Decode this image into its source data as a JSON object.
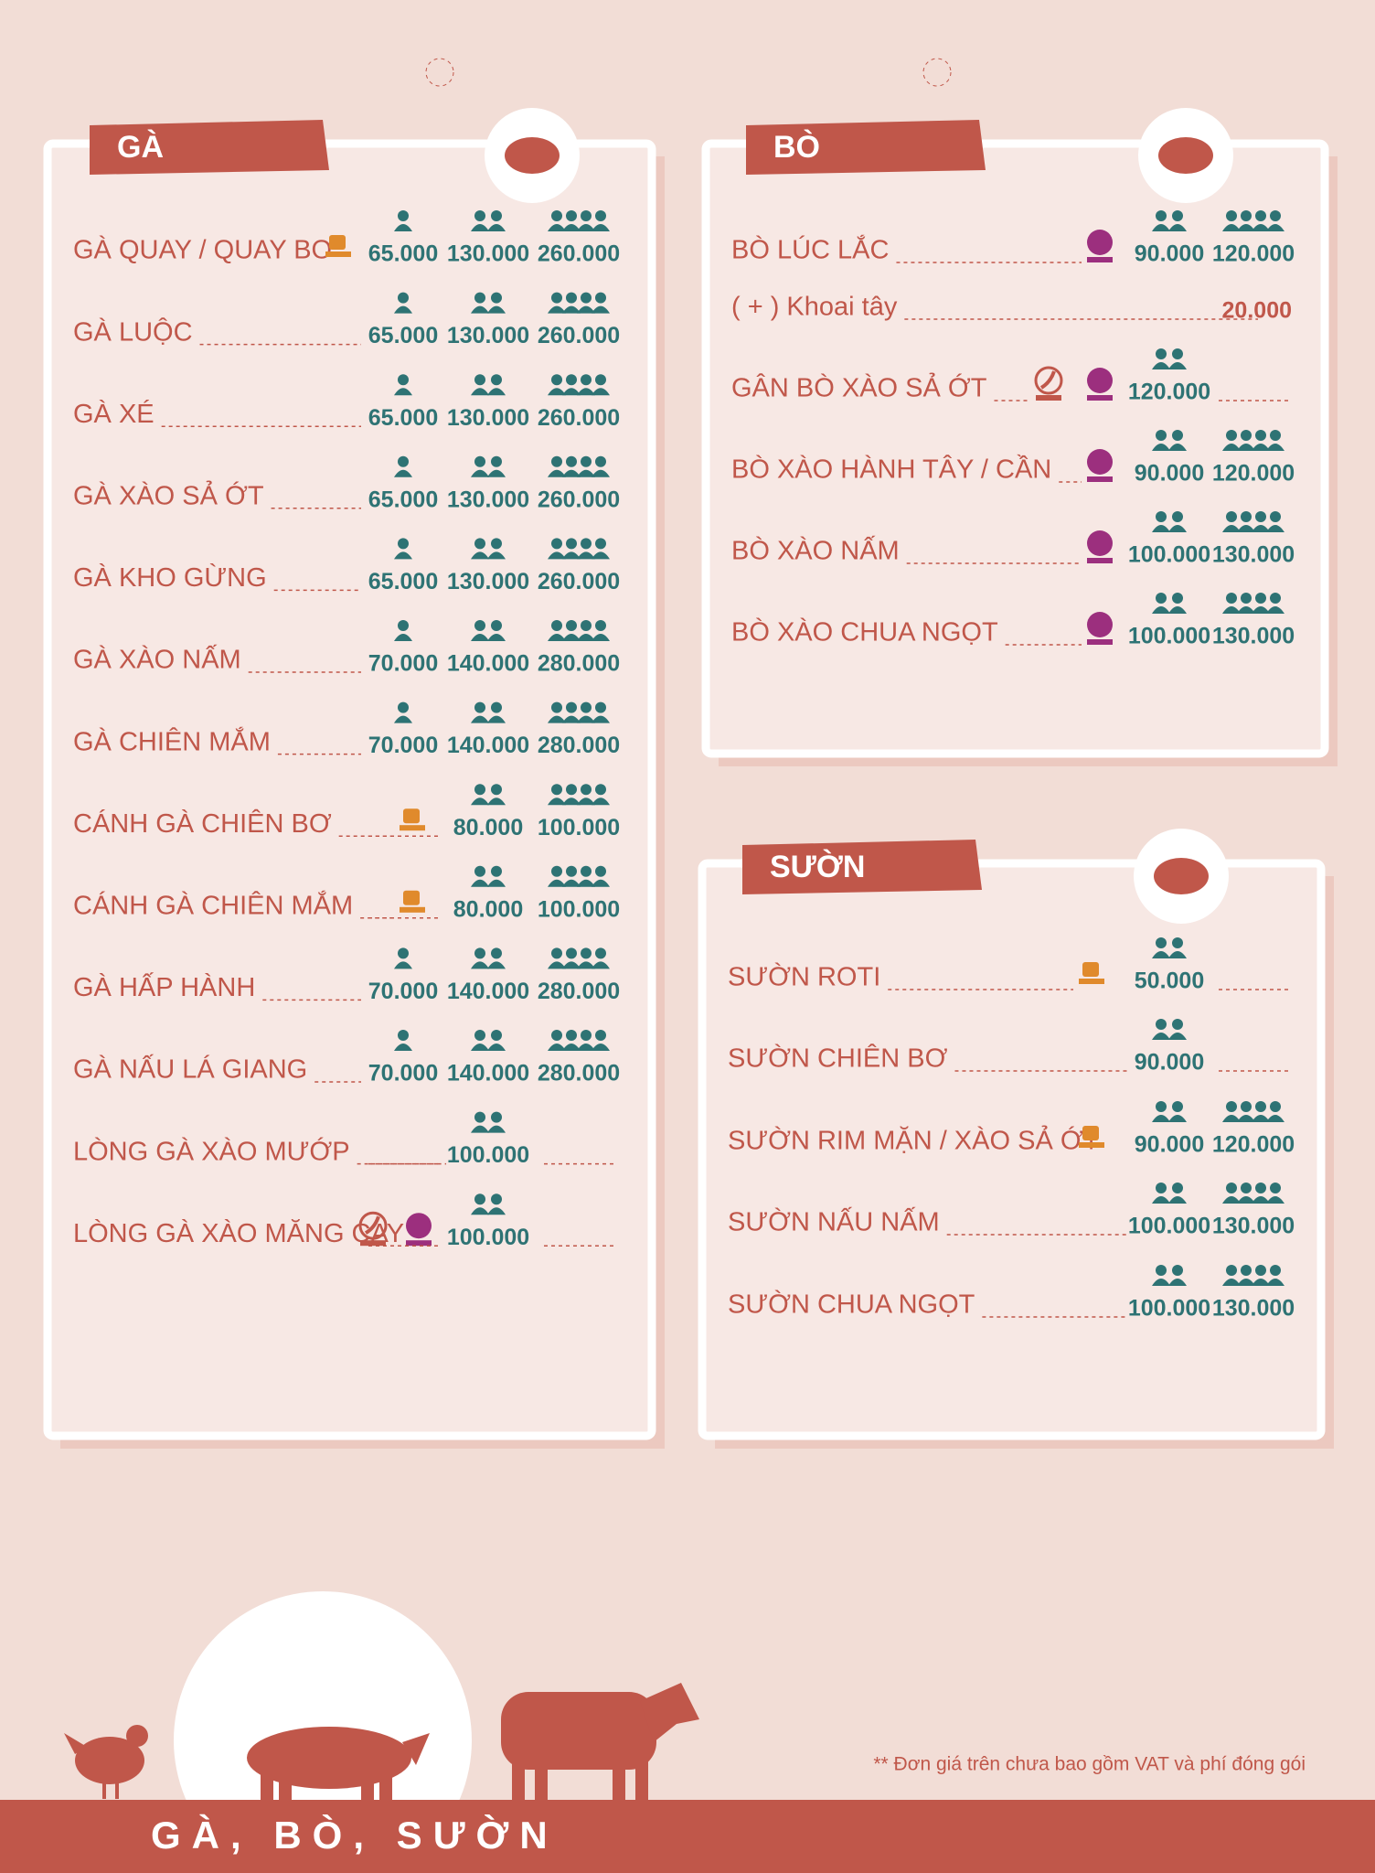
{
  "sections": [
    {
      "title": "GÀ",
      "items": [
        {
          "name": "GÀ QUAY / QUAY BƠ",
          "prices": [
            "65.000",
            "130.000",
            "260.000"
          ]
        },
        {
          "name": "GÀ LUỘC",
          "prices": [
            "65.000",
            "130.000",
            "260.000"
          ]
        },
        {
          "name": "GÀ XÉ",
          "prices": [
            "65.000",
            "130.000",
            "260.000"
          ]
        },
        {
          "name": "GÀ XÀO SẢ ỚT",
          "prices": [
            "65.000",
            "130.000",
            "260.000"
          ]
        },
        {
          "name": "GÀ KHO GỪNG",
          "prices": [
            "65.000",
            "130.000",
            "260.000"
          ]
        },
        {
          "name": "GÀ XÀO NẤM",
          "prices": [
            "70.000",
            "140.000",
            "280.000"
          ]
        },
        {
          "name": "GÀ CHIÊN MẮM",
          "prices": [
            "70.000",
            "140.000",
            "280.000"
          ]
        },
        {
          "name": "CÁNH GÀ CHIÊN BƠ",
          "prices": [
            null,
            "80.000",
            "100.000"
          ]
        },
        {
          "name": "CÁNH GÀ CHIÊN MẮM",
          "prices": [
            null,
            "80.000",
            "100.000"
          ]
        },
        {
          "name": "GÀ HẤP HÀNH",
          "prices": [
            "70.000",
            "140.000",
            "280.000"
          ]
        },
        {
          "name": "GÀ NẤU LÁ GIANG",
          "prices": [
            "70.000",
            "140.000",
            "280.000"
          ]
        },
        {
          "name": "LÒNG GÀ XÀO MƯỚP",
          "prices": [
            null,
            "100.000",
            null
          ]
        },
        {
          "name": "LÒNG GÀ XÀO MĂNG CAY",
          "prices": [
            null,
            "100.000",
            null
          ]
        }
      ]
    },
    {
      "title": "BÒ",
      "items": [
        {
          "name": "BÒ LÚC LẮC",
          "prices": [
            "90.000",
            "120.000"
          ]
        },
        {
          "name": "( + ) Khoai tây",
          "prices": [
            null,
            "20.000"
          ]
        },
        {
          "name": "GÂN BÒ XÀO SẢ ỚT",
          "prices": [
            "120.000",
            null
          ]
        },
        {
          "name": "BÒ XÀO HÀNH TÂY / CẦN",
          "prices": [
            "90.000",
            "120.000"
          ]
        },
        {
          "name": "BÒ XÀO NẤM",
          "prices": [
            "100.000",
            "130.000"
          ]
        },
        {
          "name": "BÒ XÀO CHUA NGỌT",
          "prices": [
            "100.000",
            "130.000"
          ]
        }
      ]
    },
    {
      "title": "SƯỜN",
      "items": [
        {
          "name": "SƯỜN ROTI",
          "prices": [
            "50.000",
            null
          ]
        },
        {
          "name": "SƯỜN CHIÊN BƠ",
          "prices": [
            "90.000",
            null
          ]
        },
        {
          "name": "SƯỜN RIM MẶN / XÀO SẢ ỚT",
          "prices": [
            "90.000",
            "120.000"
          ]
        },
        {
          "name": "SƯỜN NẤU NẤM",
          "prices": [
            "100.000",
            "130.000"
          ]
        },
        {
          "name": "SƯỜN CHUA NGỌT",
          "prices": [
            "100.000",
            "130.000"
          ]
        }
      ]
    }
  ],
  "footer": {
    "note": "** Đơn giá trên chưa bao gồm VAT và phí đóng gói",
    "banner": "GÀ, BÒ, SƯỜN"
  }
}
